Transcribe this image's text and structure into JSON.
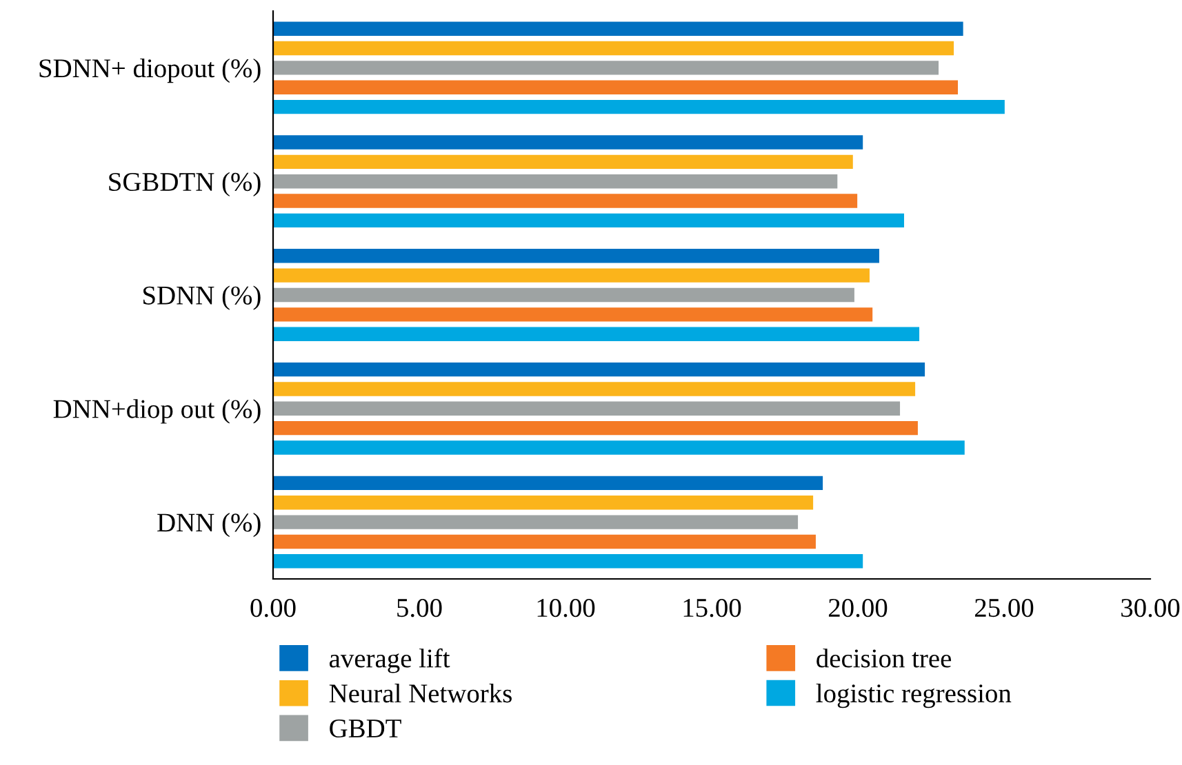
{
  "chart_data": {
    "type": "bar",
    "orientation": "horizontal",
    "categories": [
      "SDNN+ diopout (%)",
      "SGBDTN (%)",
      "SDNN (%)",
      "DNN+diop out (%)",
      "DNN (%)"
    ],
    "series": [
      {
        "name": "average lift",
        "color": "#0070c0",
        "values": [
          23.6,
          20.17,
          20.73,
          22.29,
          18.8
        ]
      },
      {
        "name": "Neural Networks",
        "color": "#fbb41b",
        "values": [
          23.28,
          19.83,
          20.4,
          21.96,
          18.47
        ]
      },
      {
        "name": "GBDT",
        "color": "#9ea3a3",
        "values": [
          22.76,
          19.3,
          19.88,
          21.44,
          17.95
        ]
      },
      {
        "name": "decision tree",
        "color": "#f47a25",
        "values": [
          23.42,
          19.98,
          20.5,
          22.05,
          18.56
        ]
      },
      {
        "name": "logistic regression",
        "color": "#00a8e1",
        "values": [
          25.02,
          21.58,
          22.1,
          23.65,
          20.17
        ]
      }
    ],
    "xlim": [
      0,
      30
    ],
    "xticks": [
      {
        "value": 0,
        "label": "0.00"
      },
      {
        "value": 5,
        "label": "5.00"
      },
      {
        "value": 10,
        "label": "10.00"
      },
      {
        "value": 15,
        "label": "15.00"
      },
      {
        "value": 20,
        "label": "20.00"
      },
      {
        "value": 25,
        "label": "25.00"
      },
      {
        "value": 30,
        "label": "30.00"
      }
    ],
    "grid": false,
    "legend": "bottom"
  }
}
